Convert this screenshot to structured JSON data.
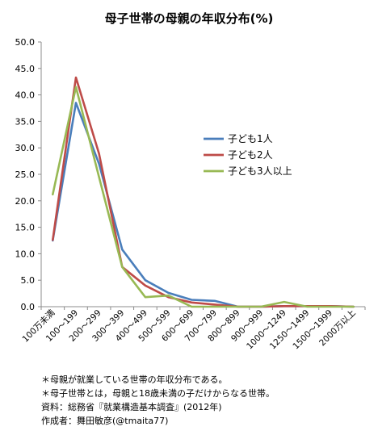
{
  "chart_data": {
    "type": "line",
    "title": "母子世帯の母親の年収分布(%)",
    "categories": [
      "100万未満",
      "100～199",
      "200～299",
      "300～399",
      "400～499",
      "500～599",
      "600～699",
      "700～799",
      "800～899",
      "900～999",
      "1000～1249",
      "1250～1499",
      "1500～1999",
      "2000万以上"
    ],
    "y_ticks": [
      "0.0",
      "5.0",
      "10.0",
      "15.0",
      "20.0",
      "25.0",
      "30.0",
      "35.0",
      "40.0",
      "45.0",
      "50.0"
    ],
    "ylim": [
      0,
      50
    ],
    "grid": false,
    "legend_position": "right",
    "series": [
      {
        "name": "子ども1人",
        "color": "#4a7ebb",
        "values": [
          12.5,
          38.5,
          27.0,
          10.8,
          5.0,
          2.6,
          1.3,
          1.1,
          0.0,
          0.0,
          0.1,
          0.1,
          0.1,
          0.0
        ]
      },
      {
        "name": "子ども2人",
        "color": "#be4b48",
        "values": [
          12.6,
          43.3,
          28.9,
          7.5,
          4.0,
          1.8,
          0.8,
          0.4,
          0.0,
          0.0,
          0.1,
          0.1,
          0.1,
          0.0
        ]
      },
      {
        "name": "子ども3人以上",
        "color": "#98b954",
        "values": [
          21.2,
          41.5,
          24.5,
          7.5,
          1.8,
          2.1,
          0.0,
          0.0,
          0.0,
          0.0,
          0.9,
          0.0,
          0.0,
          0.0
        ]
      }
    ]
  },
  "notes": [
    "＊母親が就業している世帯の年収分布である。",
    "＊母子世帯とは，母親と18歳未満の子だけからなる世帯。",
    "資料：総務省『就業構造基本調査』(2012年)",
    "作成者：舞田敏彦(@tmaita77)"
  ]
}
